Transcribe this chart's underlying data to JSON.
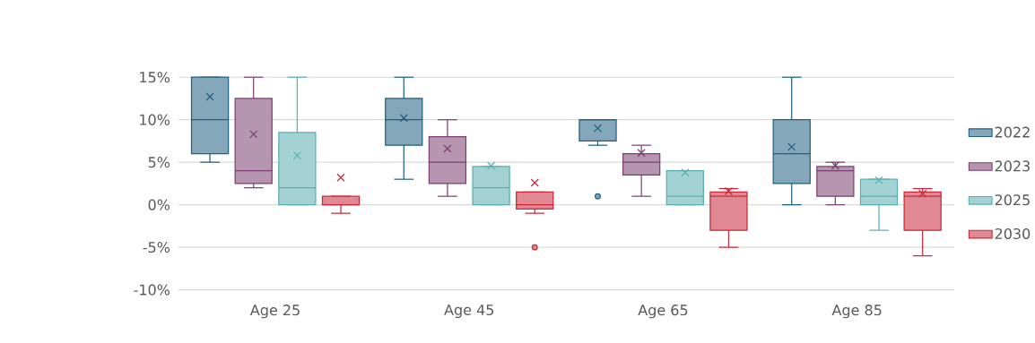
{
  "chart_data": {
    "type": "box",
    "categories": [
      "Age 25",
      "Age 45",
      "Age 65",
      "Age 85"
    ],
    "ylim": [
      -10,
      15
    ],
    "yticks": [
      {
        "value": -10,
        "label": "-10%"
      },
      {
        "value": -5,
        "label": "-5%"
      },
      {
        "value": 0,
        "label": "0%"
      },
      {
        "value": 5,
        "label": "5%"
      },
      {
        "value": 10,
        "label": "10%"
      },
      {
        "value": 15,
        "label": "15%"
      }
    ],
    "grid": "y",
    "legend": "right",
    "series": [
      {
        "name": "2022",
        "color": "#1f5f7f",
        "boxes": [
          {
            "low": 5,
            "q1": 6,
            "median": 10,
            "q3": 15,
            "high": 15,
            "mean": 12.7
          },
          {
            "low": 3,
            "q1": 7,
            "median": 10,
            "q3": 12.5,
            "high": 15,
            "mean": 10.2
          },
          {
            "low": 7,
            "q1": 7.5,
            "median": 10,
            "q3": 10,
            "high": 10,
            "mean": 9,
            "outliers": [
              1
            ]
          },
          {
            "low": 0,
            "q1": 2.5,
            "median": 6,
            "q3": 10,
            "high": 15,
            "mean": 6.8
          }
        ]
      },
      {
        "name": "2023",
        "color": "#7b3f72",
        "boxes": [
          {
            "low": 2,
            "q1": 2.5,
            "median": 4,
            "q3": 12.5,
            "high": 15,
            "mean": 8.3
          },
          {
            "low": 1,
            "q1": 2.5,
            "median": 5,
            "q3": 8,
            "high": 10,
            "mean": 6.6
          },
          {
            "low": 1,
            "q1": 3.5,
            "median": 5,
            "q3": 6,
            "high": 7,
            "mean": 6.1
          },
          {
            "low": 0,
            "q1": 1,
            "median": 4,
            "q3": 4.5,
            "high": 5,
            "mean": 4.6
          }
        ]
      },
      {
        "name": "2025",
        "color": "#5aaeb0",
        "boxes": [
          {
            "low": 0,
            "q1": 0,
            "median": 2,
            "q3": 8.5,
            "high": 15,
            "mean": 5.8
          },
          {
            "low": 0,
            "q1": 0,
            "median": 2,
            "q3": 4.5,
            "high": 4.5,
            "mean": 4.6
          },
          {
            "low": 0,
            "q1": 0,
            "median": 1,
            "q3": 4,
            "high": 4,
            "mean": 3.8
          },
          {
            "low": -3,
            "q1": 0,
            "median": 1,
            "q3": 3,
            "high": 3,
            "mean": 2.9
          }
        ]
      },
      {
        "name": "2030",
        "color": "#c8283a",
        "boxes": [
          {
            "low": -1,
            "q1": 0,
            "median": 0,
            "q3": 1,
            "high": 1,
            "mean": 3.2
          },
          {
            "low": -1,
            "q1": -0.5,
            "median": 0,
            "q3": 1.5,
            "high": 1.5,
            "mean": 2.6,
            "outliers": [
              -5
            ]
          },
          {
            "low": -5,
            "q1": -3,
            "median": 1,
            "q3": 1.5,
            "high": 1.9,
            "mean": 1.6
          },
          {
            "low": -6,
            "q1": -3,
            "median": 1,
            "q3": 1.5,
            "high": 1.9,
            "mean": 1.3
          }
        ]
      }
    ]
  }
}
